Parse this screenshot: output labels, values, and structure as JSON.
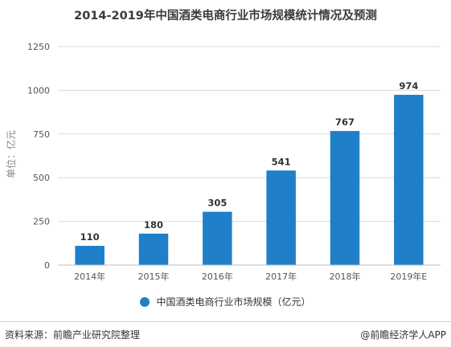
{
  "chart_data": {
    "type": "bar",
    "title": "2014-2019年中国酒类电商行业市场规模统计情况及预测",
    "categories": [
      "2014年",
      "2015年",
      "2016年",
      "2017年",
      "2018年",
      "2019年E"
    ],
    "values": [
      110,
      180,
      305,
      541,
      767,
      974
    ],
    "data_labels": [
      "110",
      "180",
      "305",
      "541",
      "767",
      "974"
    ],
    "ylabel": "单位：亿元",
    "xlabel": "",
    "ylim": [
      0,
      1250
    ],
    "yticks": [
      0,
      250,
      500,
      750,
      1000,
      1250
    ],
    "series": [
      {
        "name": "中国酒类电商行业市场规模（亿元）",
        "values": [
          110,
          180,
          305,
          541,
          767,
          974
        ]
      }
    ],
    "legend_position": "bottom",
    "grid": true,
    "bar_color": "#1f7fc9"
  },
  "footer": {
    "source": "资料来源：前瞻产业研究院整理",
    "credit": "@前瞻经济学人APP"
  }
}
